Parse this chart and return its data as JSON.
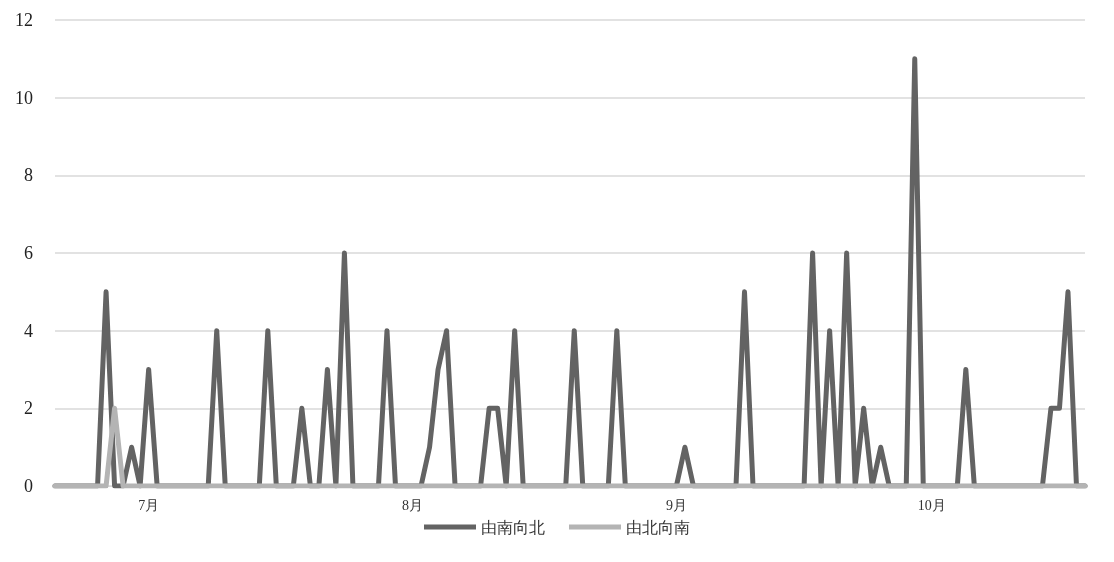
{
  "chart_data": {
    "type": "line",
    "x": [
      "--06-20",
      "--06-21",
      "--06-22",
      "--06-23",
      "--06-24",
      "--06-25",
      "--06-26",
      "--06-27",
      "--06-28",
      "--06-29",
      "--06-30",
      "--07-01",
      "--07-02",
      "--07-03",
      "--07-04",
      "--07-05",
      "--07-06",
      "--07-07",
      "--07-08",
      "--07-09",
      "--07-10",
      "--07-11",
      "--07-12",
      "--07-13",
      "--07-14",
      "--07-15",
      "--07-16",
      "--07-17",
      "--07-18",
      "--07-19",
      "--07-20",
      "--07-21",
      "--07-22",
      "--07-23",
      "--07-24",
      "--07-25",
      "--07-26",
      "--07-27",
      "--07-28",
      "--07-29",
      "--07-30",
      "--07-31",
      "--08-01",
      "--08-02",
      "--08-03",
      "--08-04",
      "--08-05",
      "--08-06",
      "--08-07",
      "--08-08",
      "--08-09",
      "--08-10",
      "--08-11",
      "--08-12",
      "--08-13",
      "--08-14",
      "--08-15",
      "--08-16",
      "--08-17",
      "--08-18",
      "--08-19",
      "--08-20",
      "--08-21",
      "--08-22",
      "--08-23",
      "--08-24",
      "--08-25",
      "--08-26",
      "--08-27",
      "--08-28",
      "--08-29",
      "--08-30",
      "--08-31",
      "--09-01",
      "--09-02",
      "--09-03",
      "--09-04",
      "--09-05",
      "--09-06",
      "--09-07",
      "--09-08",
      "--09-09",
      "--09-10",
      "--09-11",
      "--09-12",
      "--09-13",
      "--09-14",
      "--09-15",
      "--09-16",
      "--09-17",
      "--09-18",
      "--09-19",
      "--09-20",
      "--09-21",
      "--09-22",
      "--09-23",
      "--09-24",
      "--09-25",
      "--09-26",
      "--09-27",
      "--09-28",
      "--09-29",
      "--09-30",
      "--10-01",
      "--10-02",
      "--10-03",
      "--10-04",
      "--10-05",
      "--10-06",
      "--10-07",
      "--10-08",
      "--10-09",
      "--10-10",
      "--10-11",
      "--10-12",
      "--10-13",
      "--10-14",
      "--10-15",
      "--10-16",
      "--10-17",
      "--10-18",
      "--10-19"
    ],
    "series": [
      {
        "name": "由南向北",
        "color": "#636363",
        "values": [
          0,
          0,
          0,
          0,
          0,
          0,
          5,
          0,
          0,
          1,
          0,
          3,
          0,
          0,
          0,
          0,
          0,
          0,
          0,
          4,
          0,
          0,
          0,
          0,
          0,
          4,
          0,
          0,
          0,
          2,
          0,
          0,
          3,
          0,
          6,
          0,
          0,
          0,
          0,
          4,
          0,
          0,
          0,
          0,
          1,
          3,
          4,
          0,
          0,
          0,
          0,
          2,
          2,
          0,
          4,
          0,
          0,
          0,
          0,
          0,
          0,
          4,
          0,
          0,
          0,
          0,
          4,
          0,
          0,
          0,
          0,
          0,
          0,
          0,
          1,
          0,
          0,
          0,
          0,
          0,
          0,
          5,
          0,
          0,
          0,
          0,
          0,
          0,
          0,
          6,
          0,
          4,
          0,
          6,
          0,
          2,
          0,
          1,
          0,
          0,
          0,
          11,
          0,
          0,
          0,
          0,
          0,
          3,
          0,
          0,
          0,
          0,
          0,
          0,
          0,
          0,
          0,
          2,
          2,
          5,
          0,
          0
        ]
      },
      {
        "name": "由北向南",
        "color": "#b4b4b4",
        "values": [
          0,
          0,
          0,
          0,
          0,
          0,
          0,
          2,
          0,
          0,
          0,
          0,
          0,
          0,
          0,
          0,
          0,
          0,
          0,
          0,
          0,
          0,
          0,
          0,
          0,
          0,
          0,
          0,
          0,
          0,
          0,
          0,
          0,
          0,
          0,
          0,
          0,
          0,
          0,
          0,
          0,
          0,
          0,
          0,
          0,
          0,
          0,
          0,
          0,
          0,
          0,
          0,
          0,
          0,
          0,
          0,
          0,
          0,
          0,
          0,
          0,
          0,
          0,
          0,
          0,
          0,
          0,
          0,
          0,
          0,
          0,
          0,
          0,
          0,
          0,
          0,
          0,
          0,
          0,
          0,
          0,
          0,
          0,
          0,
          0,
          0,
          0,
          0,
          0,
          0,
          0,
          0,
          0,
          0,
          0,
          0,
          0,
          0,
          0,
          0,
          0,
          0,
          0,
          0,
          0,
          0,
          0,
          0,
          0,
          0,
          0,
          0,
          0,
          0,
          0,
          0,
          0,
          0,
          0,
          0,
          0,
          0
        ]
      }
    ],
    "xlim": [
      "--06-20",
      "--10-19"
    ],
    "xticks": [
      {
        "value": "--07-01",
        "label": "7月"
      },
      {
        "value": "--08-01",
        "label": "8月"
      },
      {
        "value": "--09-01",
        "label": "9月"
      },
      {
        "value": "--10-01",
        "label": "10月"
      }
    ],
    "ylim": [
      0,
      12
    ],
    "yticks": [
      0,
      2,
      4,
      6,
      8,
      10,
      12
    ],
    "grid": "y",
    "legend": "bottom"
  }
}
